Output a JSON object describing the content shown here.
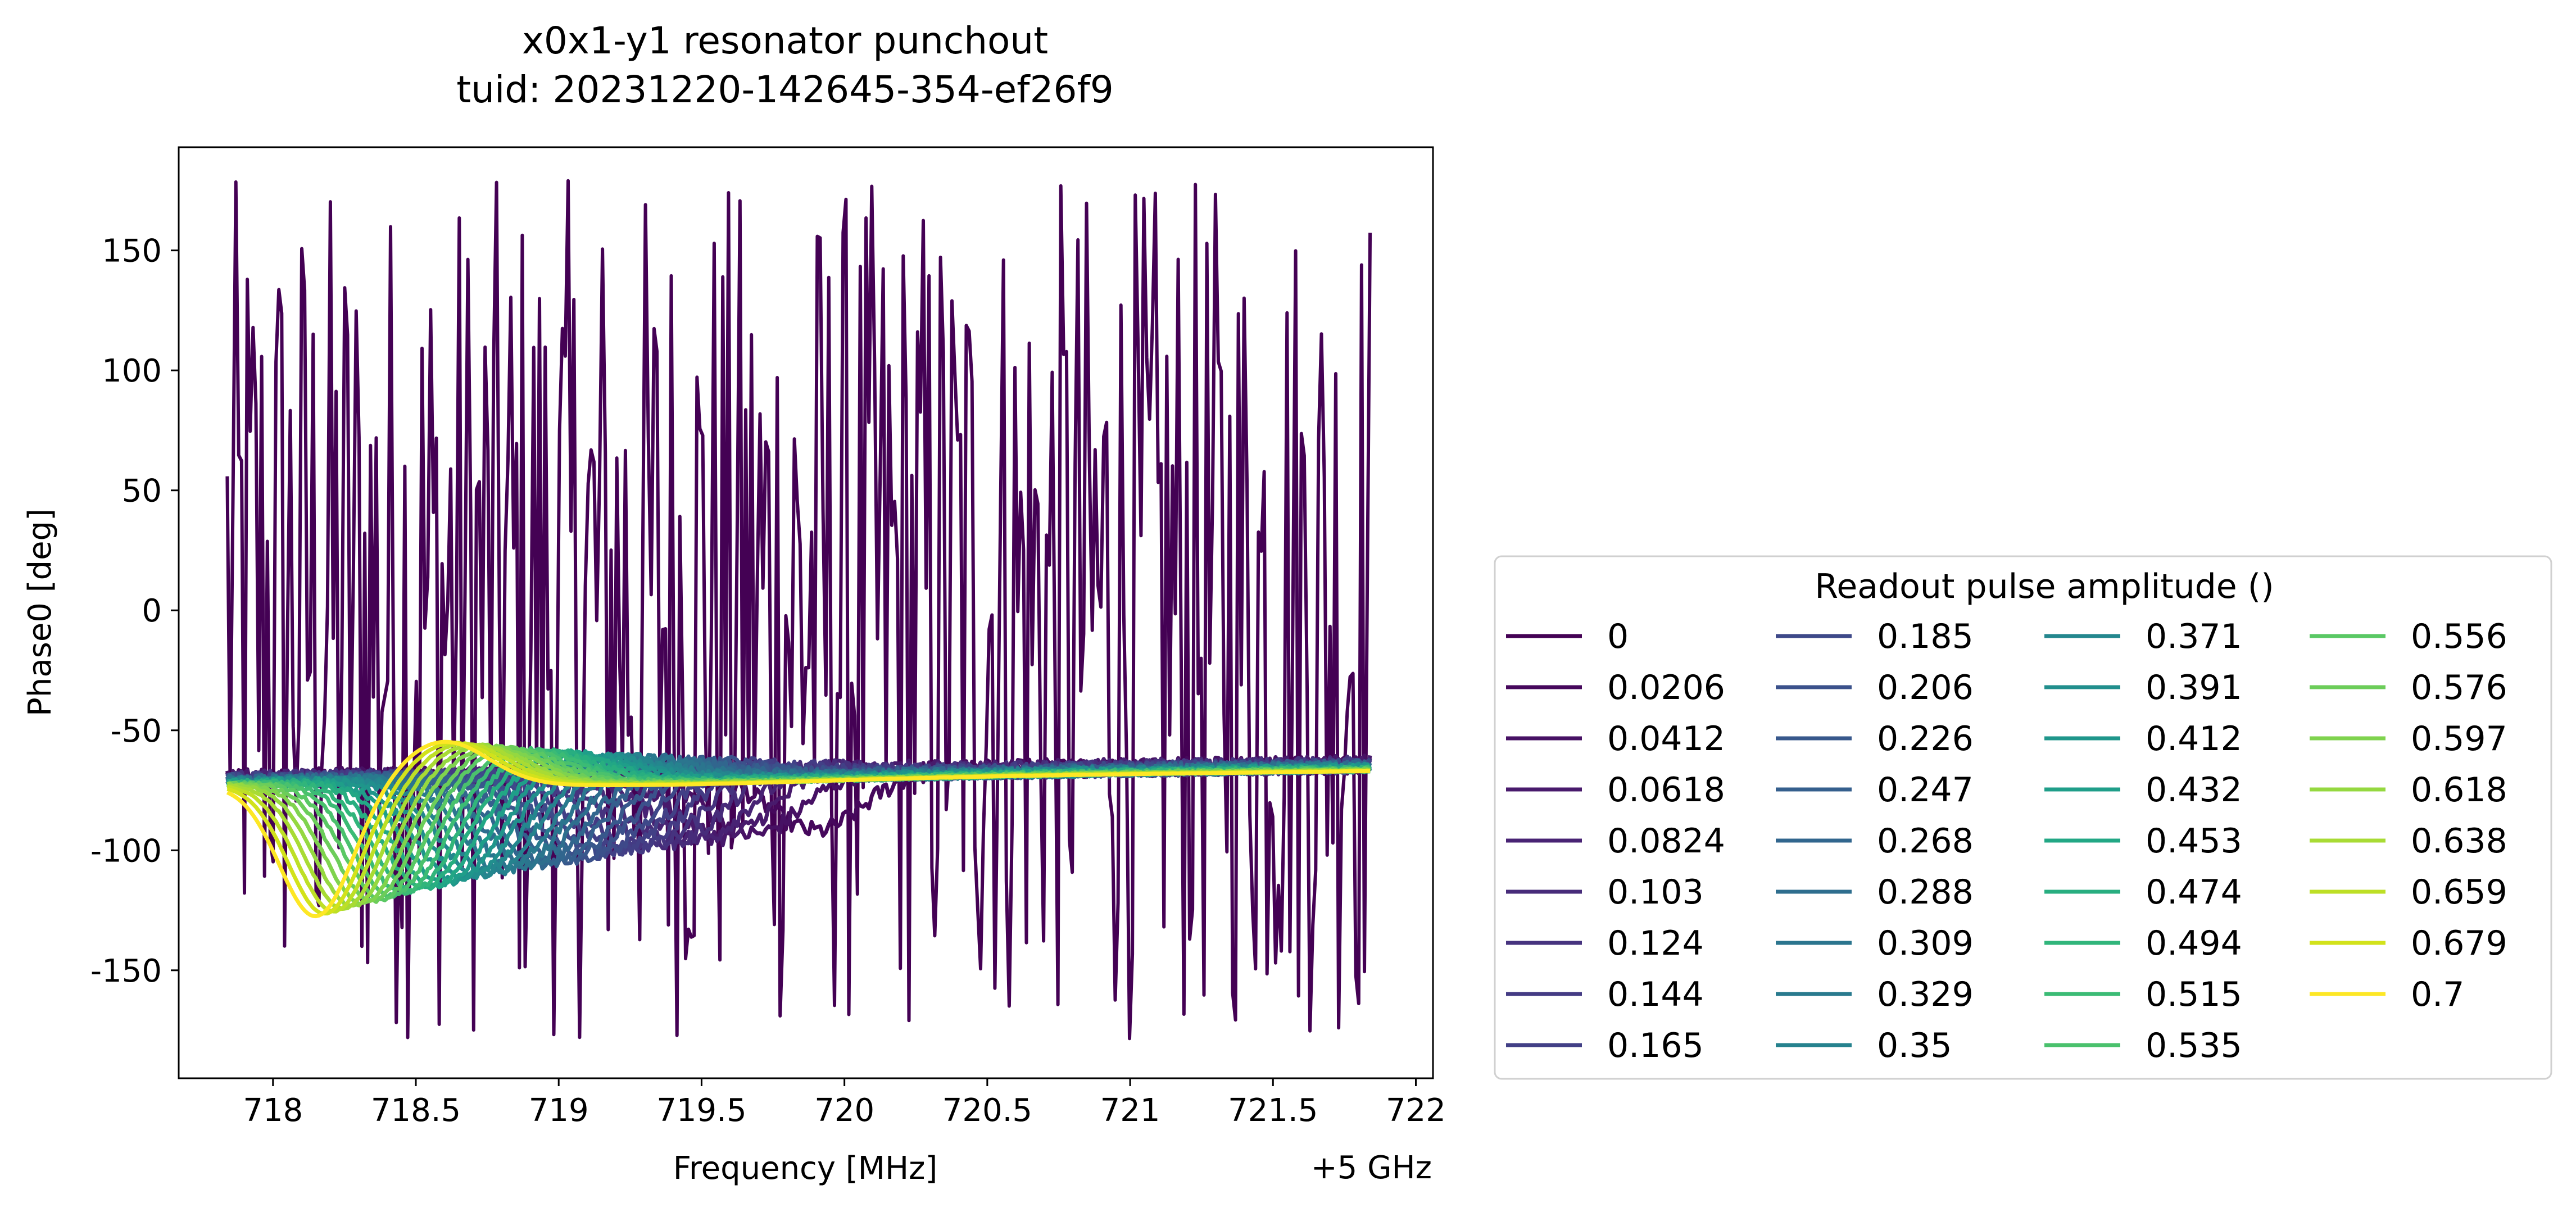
{
  "chart_data": {
    "type": "line",
    "title_line1": "x0x1-y1 resonator punchout",
    "title_line2": "tuid: 20231220-142645-354-ef26f9",
    "xlabel": "Frequency [MHz]",
    "x_offset_label": "+5 GHz",
    "ylabel": "Phase0 [deg]",
    "xlim": [
      717.67,
      722.06
    ],
    "ylim": [
      -195,
      193
    ],
    "x_ticks": [
      "718",
      "718.5",
      "719",
      "719.5",
      "720",
      "720.5",
      "721",
      "721.5",
      "722"
    ],
    "y_ticks": [
      "150",
      "100",
      "50",
      "0",
      "-50",
      "-100",
      "-150"
    ],
    "x_tick_values": [
      718,
      718.5,
      719,
      719.5,
      720,
      720.5,
      721,
      721.5,
      722
    ],
    "y_tick_values": [
      150,
      100,
      50,
      0,
      -50,
      -100,
      -150
    ],
    "x_range": [
      717.84,
      721.84
    ],
    "legend": {
      "title": "Readout pulse amplitude ()",
      "placement": "lower-right (outside axes)",
      "columns": 4
    },
    "series": [
      {
        "name": "0",
        "color": "#440154",
        "noisy": true
      },
      {
        "name": "0.0206",
        "color": "#46085c"
      },
      {
        "name": "0.0412",
        "color": "#471164"
      },
      {
        "name": "0.0618",
        "color": "#481a6c"
      },
      {
        "name": "0.0824",
        "color": "#482374"
      },
      {
        "name": "0.103",
        "color": "#472c7a"
      },
      {
        "name": "0.124",
        "color": "#46337f"
      },
      {
        "name": "0.144",
        "color": "#443b84"
      },
      {
        "name": "0.165",
        "color": "#424086"
      },
      {
        "name": "0.185",
        "color": "#3e4989"
      },
      {
        "name": "0.206",
        "color": "#3b518b"
      },
      {
        "name": "0.226",
        "color": "#38588c"
      },
      {
        "name": "0.247",
        "color": "#355f8d"
      },
      {
        "name": "0.268",
        "color": "#31668e"
      },
      {
        "name": "0.288",
        "color": "#2e6e8e"
      },
      {
        "name": "0.309",
        "color": "#2b758e"
      },
      {
        "name": "0.329",
        "color": "#297a8e"
      },
      {
        "name": "0.35",
        "color": "#26828e"
      },
      {
        "name": "0.371",
        "color": "#24878e"
      },
      {
        "name": "0.391",
        "color": "#218f8d"
      },
      {
        "name": "0.412",
        "color": "#1f968b"
      },
      {
        "name": "0.432",
        "color": "#1f9e89"
      },
      {
        "name": "0.453",
        "color": "#22a785"
      },
      {
        "name": "0.474",
        "color": "#28ae80"
      },
      {
        "name": "0.494",
        "color": "#31b57b"
      },
      {
        "name": "0.515",
        "color": "#3bbb75"
      },
      {
        "name": "0.535",
        "color": "#4ac16d"
      },
      {
        "name": "0.556",
        "color": "#5ac864"
      },
      {
        "name": "0.576",
        "color": "#6ccd5a"
      },
      {
        "name": "0.597",
        "color": "#7fd34e"
      },
      {
        "name": "0.618",
        "color": "#95d840"
      },
      {
        "name": "0.638",
        "color": "#a8db34"
      },
      {
        "name": "0.659",
        "color": "#bddf26"
      },
      {
        "name": "0.679",
        "color": "#d2e21b"
      },
      {
        "name": "0.7",
        "color": "#fde725"
      }
    ]
  }
}
